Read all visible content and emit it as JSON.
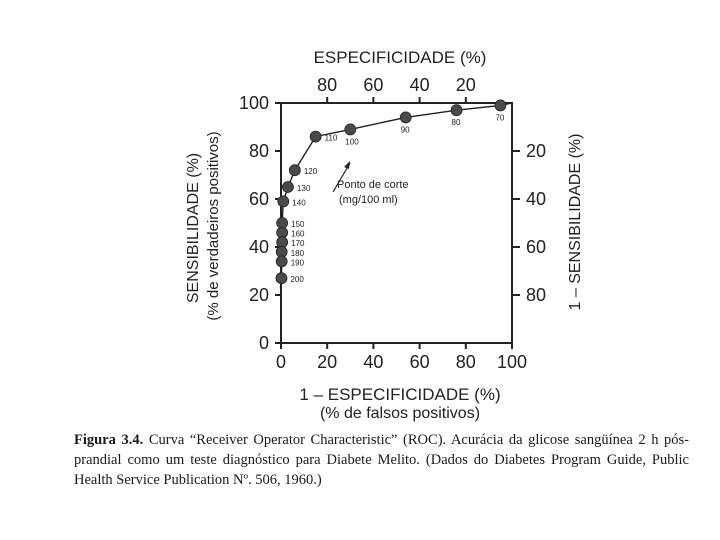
{
  "chart_data": {
    "type": "line",
    "title": "ESPECIFICIDADE (%)",
    "xlabel": "1 – ESPECIFICIDADE (%)",
    "xlabel2": "(% de falsos positivos)",
    "ylabel": "SENSIBILIDADE (%)",
    "ylabel2": "(% de verdadeiros positivos)",
    "right_label": "1 – SENSIBILIDADE (%)",
    "xlim": [
      0,
      100
    ],
    "ylim": [
      0,
      100
    ],
    "x_ticks": [
      0,
      20,
      40,
      60,
      80,
      100
    ],
    "y_ticks": [
      0,
      20,
      40,
      60,
      80,
      100
    ],
    "top_ticks": [
      {
        "value": 20,
        "label": "80"
      },
      {
        "value": 40,
        "label": "60"
      },
      {
        "value": 60,
        "label": "40"
      },
      {
        "value": 80,
        "label": "20"
      }
    ],
    "right_ticks": [
      {
        "value": 20,
        "label": "80"
      },
      {
        "value": 40,
        "label": "60"
      },
      {
        "value": 60,
        "label": "40"
      },
      {
        "value": 80,
        "label": "20"
      }
    ],
    "points": [
      {
        "cutoff": "70",
        "x": 95,
        "y": 99
      },
      {
        "cutoff": "80",
        "x": 76,
        "y": 97
      },
      {
        "cutoff": "90",
        "x": 54,
        "y": 94
      },
      {
        "cutoff": "100",
        "x": 30,
        "y": 89
      },
      {
        "cutoff": "110",
        "x": 15,
        "y": 86
      },
      {
        "cutoff": "120",
        "x": 6,
        "y": 72
      },
      {
        "cutoff": "130",
        "x": 3,
        "y": 65
      },
      {
        "cutoff": "140",
        "x": 1,
        "y": 59
      },
      {
        "cutoff": "150",
        "x": 0.5,
        "y": 50
      },
      {
        "cutoff": "160",
        "x": 0.5,
        "y": 46
      },
      {
        "cutoff": "170",
        "x": 0.5,
        "y": 42
      },
      {
        "cutoff": "180",
        "x": 0.3,
        "y": 38
      },
      {
        "cutoff": "190",
        "x": 0.3,
        "y": 34
      },
      {
        "cutoff": "200",
        "x": 0.2,
        "y": 27
      }
    ],
    "annotation": [
      "Ponto de corte",
      "(mg/100 ml)"
    ]
  },
  "caption": {
    "figure_label": "Figura 3.4.",
    "text": "Curva “Receiver Operator Characteristic” (ROC). Acurácia da glicose sangüínea 2 h pós-prandial como um teste diagnóstico para Diabete Melito. (Dados do Diabetes Program Guide, Public Health Service Publication Nº. 506, 1960.)"
  }
}
